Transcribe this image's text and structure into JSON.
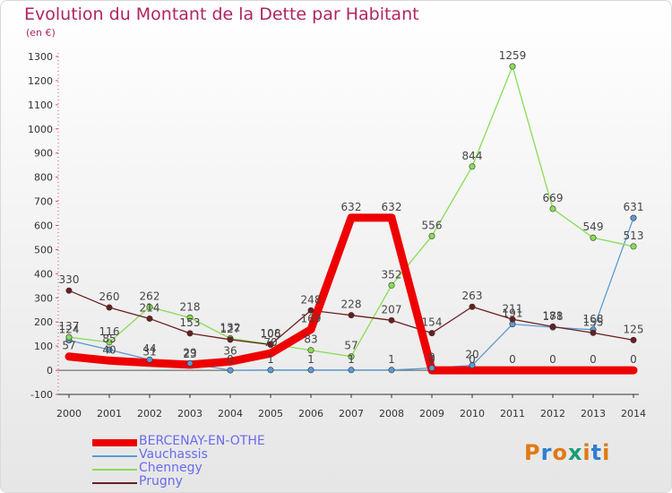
{
  "header": {
    "title": "Evolution du Montant de la Dette par Habitant",
    "unit": "(en €)"
  },
  "logo": {
    "text": "Proxiti",
    "letter_colors": [
      "#e07a12",
      "#2e7fd0",
      "#e07a12",
      "#1b9e77",
      "#e07a12",
      "#2e7fd0",
      "#e07a12"
    ]
  },
  "chart_data": {
    "type": "line",
    "title": "Evolution du Montant de la Dette par Habitant",
    "ylabel": "(en €)",
    "xlabel": "",
    "x": [
      "2000",
      "2001",
      "2002",
      "2003",
      "2004",
      "2005",
      "2006",
      "2007",
      "2008",
      "2009",
      "2010",
      "2011",
      "2012",
      "2013",
      "2014"
    ],
    "ylim": [
      -100,
      1300
    ],
    "yticks": [
      -100,
      0,
      100,
      200,
      300,
      400,
      500,
      600,
      700,
      800,
      900,
      1000,
      1100,
      1200,
      1300
    ],
    "grid": false,
    "legend_position": "bottom-left",
    "series": [
      {
        "name": "BERCENAY-EN-OTHE",
        "color": "#ee0000",
        "values": [
          57,
          40,
          31,
          23,
          36,
          70,
          169,
          632,
          632,
          0,
          0,
          0,
          0,
          0,
          0
        ],
        "labels": [
          "57",
          "40",
          "31",
          "23",
          "36",
          "70",
          "169",
          "632",
          "632",
          "0",
          "0",
          "0",
          "0",
          "0",
          "0"
        ]
      },
      {
        "name": "Vauchassis",
        "color": "#5b9bd5",
        "values": [
          124,
          85,
          44,
          29,
          0,
          1,
          1,
          1,
          1,
          9,
          20,
          191,
          178,
          168,
          631
        ],
        "labels": [
          "124",
          "85",
          "44",
          "29",
          "0",
          "1",
          "1",
          "1",
          "1",
          "9",
          "20",
          "191",
          "178",
          "168",
          "631"
        ]
      },
      {
        "name": "Chennegy",
        "color": "#88dd55",
        "values": [
          137,
          116,
          262,
          218,
          132,
          108,
          83,
          57,
          352,
          556,
          844,
          1259,
          669,
          549,
          513
        ],
        "labels": [
          "137",
          "116",
          "262",
          "218",
          "132",
          "108",
          "83",
          "57",
          "352",
          "556",
          "844",
          "1259",
          "669",
          "549",
          "513"
        ]
      },
      {
        "name": "Prugny",
        "color": "#6b1e1e",
        "values": [
          330,
          260,
          214,
          153,
          127,
          106,
          248,
          228,
          207,
          154,
          263,
          211,
          181,
          155,
          125
        ],
        "labels": [
          "330",
          "260",
          "214",
          "153",
          "127",
          "106",
          "248",
          "228",
          "207",
          "154",
          "263",
          "211",
          "181",
          "155",
          "125"
        ]
      }
    ]
  }
}
